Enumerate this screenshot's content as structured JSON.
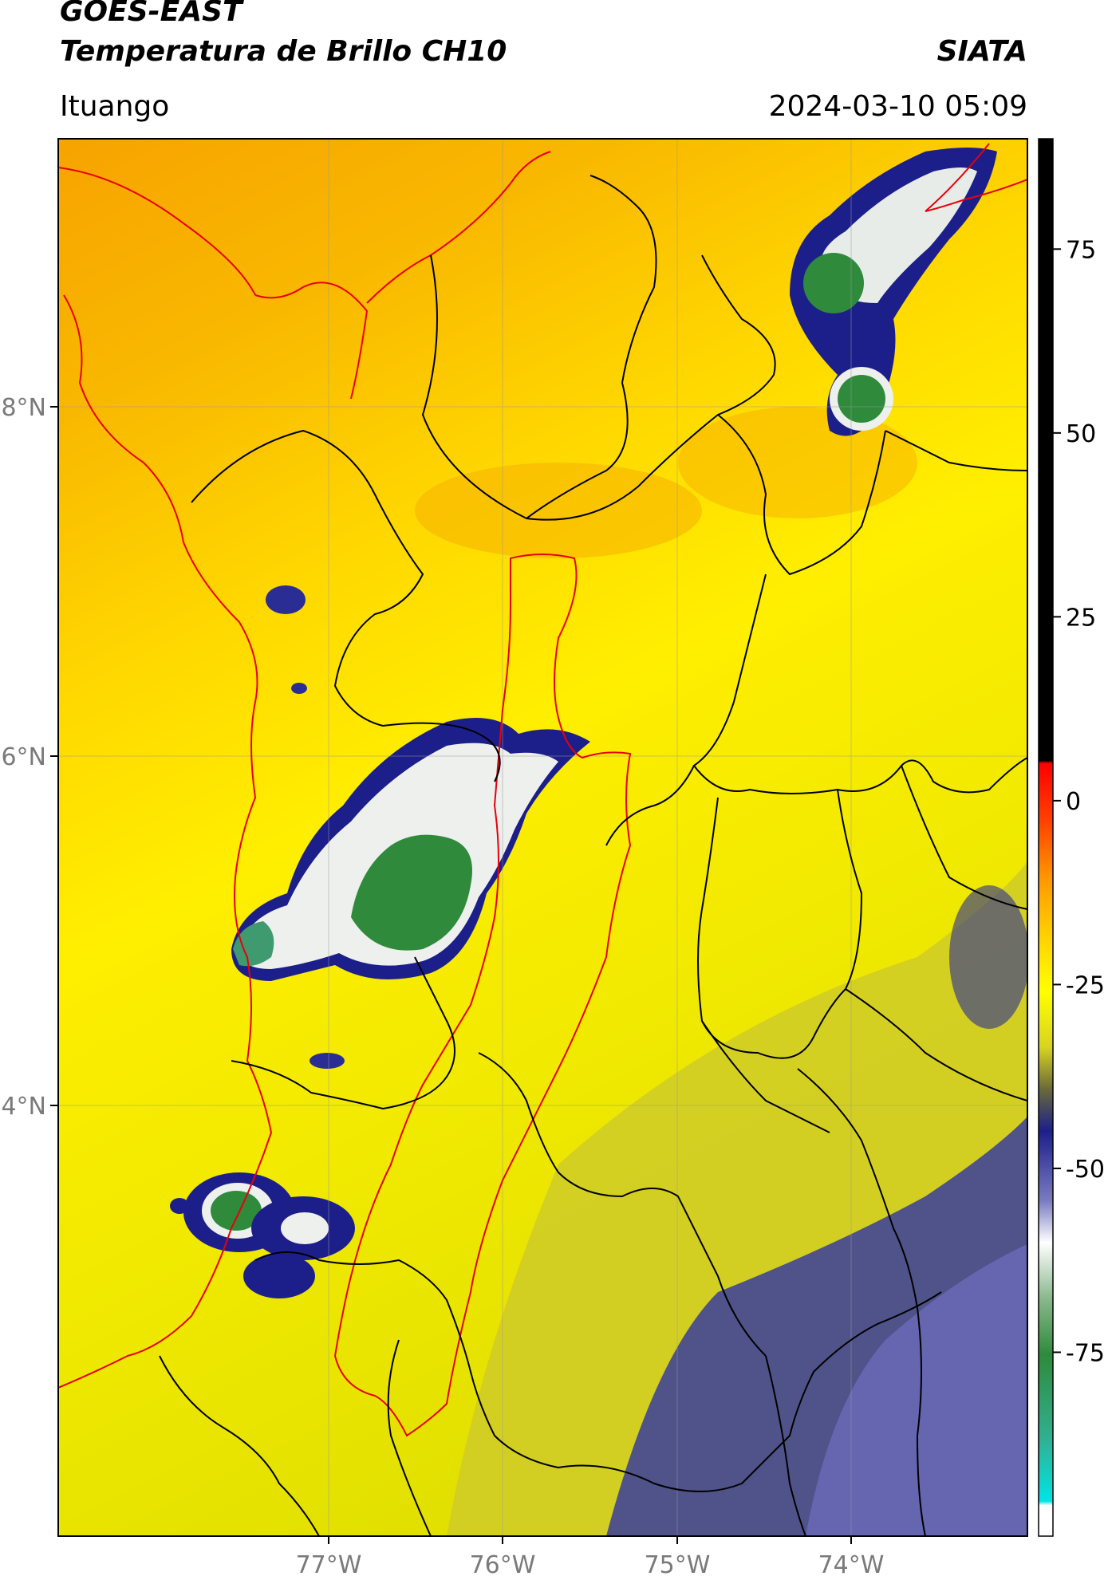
{
  "header": {
    "title_line1": "GOES-EAST",
    "title_line2": "Temperatura de Brillo CH10",
    "organization": "SIATA",
    "location": "Ituango",
    "datetime": "2024-03-10 05:09"
  },
  "map": {
    "lon_ticks": [
      "77°W",
      "76°W",
      "75°W",
      "74°W"
    ],
    "lat_ticks": [
      "8°N",
      "6°N",
      "4°N"
    ],
    "colors": {
      "warm_orange": "#f7a300",
      "warm_yellow": "#ffee00",
      "cool_olive": "#d8d420",
      "cloud_navy": "#1c1f8a",
      "cloud_white": "#f2f2f2",
      "cloud_green": "#2f8a3c",
      "country_border": "#e8000b",
      "department_border": "#000000"
    }
  },
  "colorbar": {
    "ticks": [
      "75",
      "50",
      "25",
      "0",
      "-25",
      "-50",
      "-75"
    ],
    "tick_values": [
      75,
      50,
      25,
      0,
      -25,
      -50,
      -75
    ],
    "range": [
      -100,
      90
    ]
  }
}
